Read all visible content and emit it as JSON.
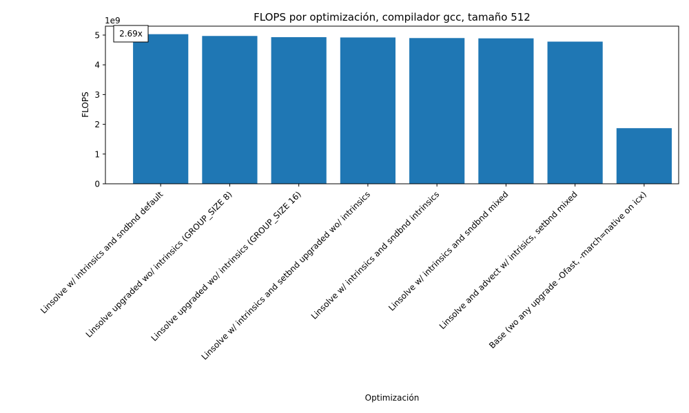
{
  "chart_data": {
    "type": "bar",
    "title": "FLOPS por optimización, compilador gcc, tamaño 512",
    "xlabel": "Optimización",
    "ylabel": "FLOPS",
    "y_multiplier_label": "1e9",
    "y_scale": 1000000000.0,
    "ylim": [
      0,
      5.3
    ],
    "yticks": [
      0,
      1,
      2,
      3,
      4,
      5
    ],
    "ytick_labels": [
      "0",
      "1",
      "2",
      "3",
      "4",
      "5"
    ],
    "grid": false,
    "bar_color": "#1f77b4",
    "categories": [
      "Linsolve w/ intrinsics and sndbnd default",
      "Linsolve upgraded wo/ intrinsics (GROUP_SIZE 8)",
      "Linsolve upgraded wo/ intrinsics (GROUP_SIZE 16)",
      "Linsolve w/ intrinsics and setbnd upgraded wo/ intrinsics",
      "Linsolve w/ intrinsics and sndbnd intrinsics",
      "Linsolve w/ intrinsics and sndbnd mixed",
      "Linsolve and advect w/ intrisics, setbnd  mixed",
      "Base (wo any upgrade -Ofast, -march=native on icx)"
    ],
    "values": [
      5.03,
      4.97,
      4.93,
      4.92,
      4.9,
      4.89,
      4.78,
      1.87
    ],
    "annotations": [
      {
        "text": "2.69x",
        "location": "top-left"
      }
    ]
  }
}
